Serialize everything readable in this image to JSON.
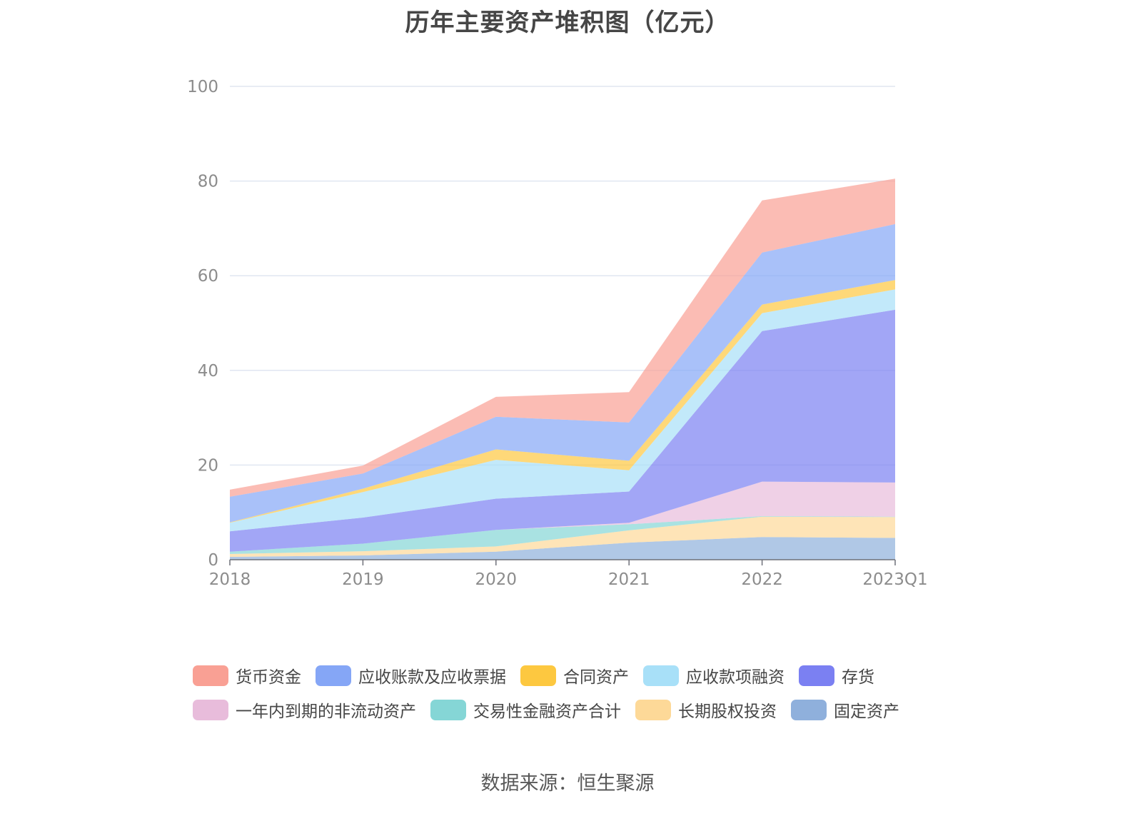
{
  "title": "历年主要资产堆积图（亿元）",
  "source": "数据来源：恒生聚源",
  "chart_data": {
    "type": "area",
    "stacked": true,
    "title": "历年主要资产堆积图（亿元）",
    "xlabel": "",
    "ylabel": "",
    "categories": [
      "2018",
      "2019",
      "2020",
      "2021",
      "2022",
      "2023Q1"
    ],
    "ylim": [
      0,
      100
    ],
    "yticks": [
      0,
      20,
      40,
      60,
      80,
      100
    ],
    "grid": true,
    "legend_position": "bottom",
    "series": [
      {
        "name": "固定资产",
        "color": "#8fb0dc",
        "values": [
          0.6,
          0.9,
          1.7,
          3.6,
          4.8,
          4.6
        ]
      },
      {
        "name": "长期股权投资",
        "color": "#fdd998",
        "values": [
          0.6,
          0.9,
          1.1,
          2.6,
          4.3,
          4.4
        ]
      },
      {
        "name": "交易性金融资产合计",
        "color": "#85d6d6",
        "values": [
          0.5,
          1.6,
          3.5,
          1.3,
          0.1,
          0.1
        ]
      },
      {
        "name": "一年内到期的非流动资产",
        "color": "#e8bcdb",
        "values": [
          0.0,
          0.0,
          0.0,
          0.3,
          7.3,
          7.2
        ]
      },
      {
        "name": "存货",
        "color": "#7b80f2",
        "values": [
          4.3,
          5.5,
          6.6,
          6.6,
          31.8,
          36.5
        ]
      },
      {
        "name": "应收款项融资",
        "color": "#a8e0f8",
        "values": [
          1.8,
          5.4,
          8.2,
          4.5,
          3.8,
          4.3
        ]
      },
      {
        "name": "合同资产",
        "color": "#fdc840",
        "values": [
          0.1,
          0.7,
          2.2,
          2.0,
          1.8,
          2.0
        ]
      },
      {
        "name": "应收账款及应收票据",
        "color": "#85a6f6",
        "values": [
          5.4,
          3.2,
          6.9,
          8.1,
          11.0,
          11.8
        ]
      },
      {
        "name": "货币资金",
        "color": "#f9a094",
        "values": [
          1.5,
          1.7,
          4.2,
          6.4,
          11.0,
          9.6
        ]
      }
    ]
  },
  "legend": [
    {
      "name": "货币资金",
      "color": "#f9a094"
    },
    {
      "name": "应收账款及应收票据",
      "color": "#85a6f6"
    },
    {
      "name": "合同资产",
      "color": "#fdc840"
    },
    {
      "name": "应收款项融资",
      "color": "#a8e0f8"
    },
    {
      "name": "存货",
      "color": "#7b80f2"
    },
    {
      "name": "一年内到期的非流动资产",
      "color": "#e8bcdb"
    },
    {
      "name": "交易性金融资产合计",
      "color": "#85d6d6"
    },
    {
      "name": "长期股权投资",
      "color": "#fdd998"
    },
    {
      "name": "固定资产",
      "color": "#8fb0dc"
    }
  ]
}
